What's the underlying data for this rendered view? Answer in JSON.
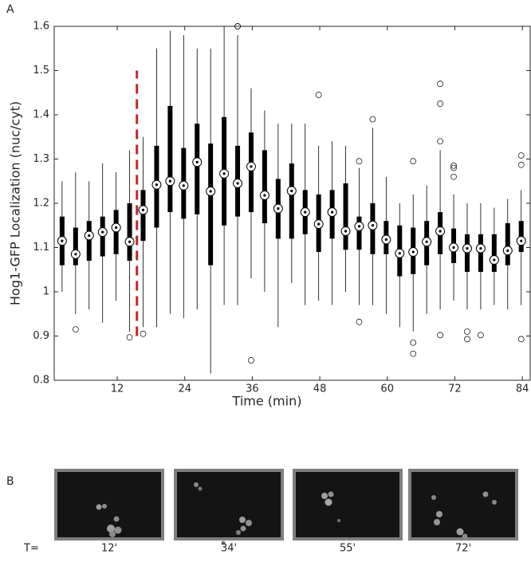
{
  "chart_data": {
    "type": "box",
    "panel_label": "A",
    "xlabel": "Time (min)",
    "ylabel": "Hog1-GFP Localization (nuc/cyt)",
    "xlim": [
      0.8,
      85.4
    ],
    "ylim": [
      0.8,
      1.6
    ],
    "xticks": [
      12,
      24,
      36,
      48,
      60,
      72,
      84
    ],
    "yticks": [
      0.8,
      0.9,
      1,
      1.1,
      1.2,
      1.3,
      1.4,
      1.5,
      1.6
    ],
    "color": "#000000",
    "vline": {
      "x": 15.5,
      "ymin": 0.9,
      "ymax": 1.5,
      "color": "#c0272d"
    },
    "boxes": [
      {
        "x": 2.2,
        "median": 1.115,
        "q1": 1.06,
        "q3": 1.17,
        "whisker_low": 1.0,
        "whisker_high": 1.25,
        "outliers": []
      },
      {
        "x": 4.6,
        "median": 1.085,
        "q1": 1.06,
        "q3": 1.145,
        "whisker_low": 0.95,
        "whisker_high": 1.27,
        "outliers": [
          0.915
        ]
      },
      {
        "x": 7.0,
        "median": 1.127,
        "q1": 1.07,
        "q3": 1.16,
        "whisker_low": 0.96,
        "whisker_high": 1.25,
        "outliers": []
      },
      {
        "x": 9.4,
        "median": 1.135,
        "q1": 1.08,
        "q3": 1.17,
        "whisker_low": 0.93,
        "whisker_high": 1.29,
        "outliers": []
      },
      {
        "x": 11.8,
        "median": 1.145,
        "q1": 1.085,
        "q3": 1.185,
        "whisker_low": 0.98,
        "whisker_high": 1.27,
        "outliers": []
      },
      {
        "x": 14.2,
        "median": 1.113,
        "q1": 1.07,
        "q3": 1.2,
        "whisker_low": 0.91,
        "whisker_high": 1.32,
        "outliers": [
          0.897
        ]
      },
      {
        "x": 16.6,
        "median": 1.185,
        "q1": 1.115,
        "q3": 1.23,
        "whisker_low": 0.92,
        "whisker_high": 1.35,
        "outliers": [
          0.905
        ]
      },
      {
        "x": 19.0,
        "median": 1.242,
        "q1": 1.145,
        "q3": 1.33,
        "whisker_low": 0.92,
        "whisker_high": 1.55,
        "outliers": []
      },
      {
        "x": 21.4,
        "median": 1.25,
        "q1": 1.18,
        "q3": 1.42,
        "whisker_low": 0.95,
        "whisker_high": 1.59,
        "outliers": []
      },
      {
        "x": 23.8,
        "median": 1.24,
        "q1": 1.165,
        "q3": 1.325,
        "whisker_low": 0.94,
        "whisker_high": 1.58,
        "outliers": []
      },
      {
        "x": 26.2,
        "median": 1.293,
        "q1": 1.175,
        "q3": 1.38,
        "whisker_low": 0.96,
        "whisker_high": 1.55,
        "outliers": []
      },
      {
        "x": 28.6,
        "median": 1.227,
        "q1": 1.06,
        "q3": 1.335,
        "whisker_low": 0.815,
        "whisker_high": 1.55,
        "outliers": []
      },
      {
        "x": 31.0,
        "median": 1.267,
        "q1": 1.15,
        "q3": 1.395,
        "whisker_low": 0.97,
        "whisker_high": 1.6,
        "outliers": []
      },
      {
        "x": 33.4,
        "median": 1.245,
        "q1": 1.17,
        "q3": 1.33,
        "whisker_low": 0.97,
        "whisker_high": 1.58,
        "outliers": [
          1.6,
          1.6
        ]
      },
      {
        "x": 35.8,
        "median": 1.283,
        "q1": 1.18,
        "q3": 1.36,
        "whisker_low": 1.03,
        "whisker_high": 1.46,
        "outliers": [
          0.845
        ]
      },
      {
        "x": 38.2,
        "median": 1.218,
        "q1": 1.155,
        "q3": 1.32,
        "whisker_low": 1.0,
        "whisker_high": 1.41,
        "outliers": []
      },
      {
        "x": 40.6,
        "median": 1.188,
        "q1": 1.12,
        "q3": 1.255,
        "whisker_low": 0.92,
        "whisker_high": 1.38,
        "outliers": []
      },
      {
        "x": 43.0,
        "median": 1.228,
        "q1": 1.12,
        "q3": 1.29,
        "whisker_low": 1.02,
        "whisker_high": 1.38,
        "outliers": []
      },
      {
        "x": 45.4,
        "median": 1.18,
        "q1": 1.13,
        "q3": 1.23,
        "whisker_low": 0.97,
        "whisker_high": 1.38,
        "outliers": []
      },
      {
        "x": 47.8,
        "median": 1.153,
        "q1": 1.09,
        "q3": 1.22,
        "whisker_low": 0.98,
        "whisker_high": 1.33,
        "outliers": [
          1.445
        ]
      },
      {
        "x": 50.2,
        "median": 1.18,
        "q1": 1.12,
        "q3": 1.23,
        "whisker_low": 0.97,
        "whisker_high": 1.34,
        "outliers": []
      },
      {
        "x": 52.6,
        "median": 1.137,
        "q1": 1.095,
        "q3": 1.245,
        "whisker_low": 1.0,
        "whisker_high": 1.33,
        "outliers": []
      },
      {
        "x": 55.0,
        "median": 1.148,
        "q1": 1.095,
        "q3": 1.17,
        "whisker_low": 0.97,
        "whisker_high": 1.28,
        "outliers": [
          1.295,
          0.932
        ]
      },
      {
        "x": 57.4,
        "median": 1.15,
        "q1": 1.085,
        "q3": 1.2,
        "whisker_low": 0.97,
        "whisker_high": 1.37,
        "outliers": [
          1.39
        ]
      },
      {
        "x": 59.8,
        "median": 1.118,
        "q1": 1.085,
        "q3": 1.16,
        "whisker_low": 0.95,
        "whisker_high": 1.26,
        "outliers": []
      },
      {
        "x": 62.2,
        "median": 1.087,
        "q1": 1.035,
        "q3": 1.15,
        "whisker_low": 0.92,
        "whisker_high": 1.2,
        "outliers": []
      },
      {
        "x": 64.6,
        "median": 1.09,
        "q1": 1.04,
        "q3": 1.145,
        "whisker_low": 0.91,
        "whisker_high": 1.22,
        "outliers": [
          1.295,
          0.885,
          0.86
        ]
      },
      {
        "x": 67.0,
        "median": 1.113,
        "q1": 1.06,
        "q3": 1.16,
        "whisker_low": 0.95,
        "whisker_high": 1.24,
        "outliers": []
      },
      {
        "x": 69.4,
        "median": 1.137,
        "q1": 1.085,
        "q3": 1.18,
        "whisker_low": 0.96,
        "whisker_high": 1.32,
        "outliers": [
          1.47,
          1.425,
          1.34,
          0.902
        ]
      },
      {
        "x": 71.8,
        "median": 1.1,
        "q1": 1.065,
        "q3": 1.143,
        "whisker_low": 0.98,
        "whisker_high": 1.22,
        "outliers": [
          1.285,
          1.28,
          1.26
        ]
      },
      {
        "x": 74.2,
        "median": 1.098,
        "q1": 1.045,
        "q3": 1.13,
        "whisker_low": 0.96,
        "whisker_high": 1.2,
        "outliers": [
          0.91,
          0.893
        ]
      },
      {
        "x": 76.6,
        "median": 1.098,
        "q1": 1.045,
        "q3": 1.13,
        "whisker_low": 0.96,
        "whisker_high": 1.2,
        "outliers": [
          0.902
        ]
      },
      {
        "x": 79.0,
        "median": 1.072,
        "q1": 1.045,
        "q3": 1.13,
        "whisker_low": 0.97,
        "whisker_high": 1.19,
        "outliers": []
      },
      {
        "x": 81.4,
        "median": 1.093,
        "q1": 1.06,
        "q3": 1.155,
        "whisker_low": 0.96,
        "whisker_high": 1.21,
        "outliers": []
      },
      {
        "x": 83.8,
        "median": 1.115,
        "q1": 1.09,
        "q3": 1.16,
        "whisker_low": 0.97,
        "whisker_high": 1.23,
        "outliers": [
          1.308,
          1.287,
          0.893
        ]
      }
    ]
  },
  "panel_b": {
    "label": "B",
    "row_label": "T=",
    "captions": [
      "12'",
      "34'",
      "55'",
      "72'"
    ]
  }
}
